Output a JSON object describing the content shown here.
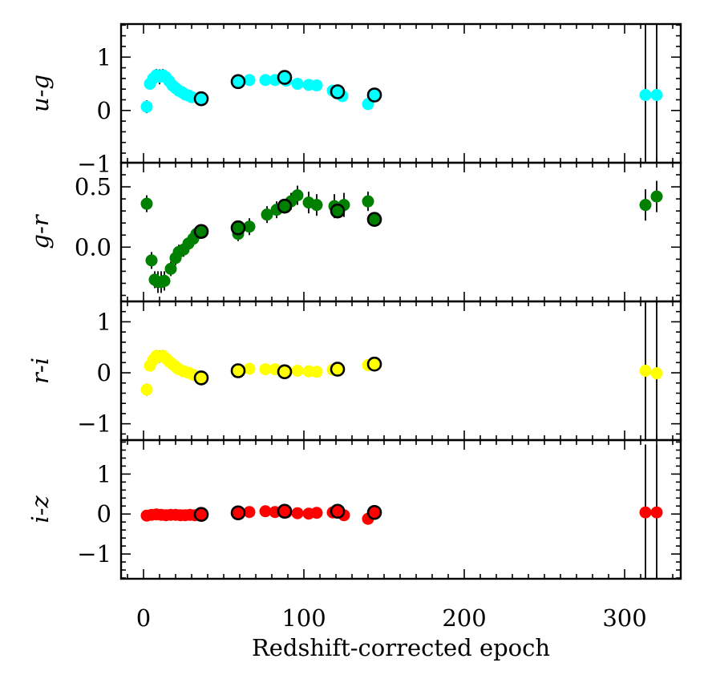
{
  "chart_data": {
    "type": "scatter",
    "xlabel": "Redshift-corrected epoch",
    "xlim": [
      -14,
      335
    ],
    "xticks": [
      0,
      100,
      200,
      300
    ],
    "xtick_labels": [
      "0",
      "100",
      "200",
      "300"
    ],
    "panels": [
      {
        "id": "u-g",
        "ylabel": "u-g",
        "color": "#00ffff",
        "ylim": [
          -0.98,
          1.62
        ],
        "yticks": [
          -1,
          0,
          1
        ],
        "ytick_labels": [
          "−1",
          "0",
          "1"
        ],
        "points": [
          {
            "x": 2,
            "y": 0.07,
            "err": 0.12
          },
          {
            "x": 4,
            "y": 0.5,
            "err": 0.1
          },
          {
            "x": 6,
            "y": 0.6,
            "err": 0.12
          },
          {
            "x": 8,
            "y": 0.66,
            "err": 0.12
          },
          {
            "x": 10,
            "y": 0.63,
            "err": 0.14
          },
          {
            "x": 12,
            "y": 0.66,
            "err": 0.12
          },
          {
            "x": 14,
            "y": 0.62,
            "err": 0.1
          },
          {
            "x": 16,
            "y": 0.55,
            "err": 0.08
          },
          {
            "x": 18,
            "y": 0.47,
            "err": 0.06
          },
          {
            "x": 20,
            "y": 0.42,
            "err": 0.06
          },
          {
            "x": 22,
            "y": 0.37,
            "err": 0.05
          },
          {
            "x": 24,
            "y": 0.34,
            "err": 0.05
          },
          {
            "x": 26,
            "y": 0.3,
            "err": 0.05
          },
          {
            "x": 28,
            "y": 0.28,
            "err": 0.05
          },
          {
            "x": 30,
            "y": 0.25,
            "err": 0.04
          },
          {
            "x": 59,
            "y": 0.55,
            "err": 0.05
          },
          {
            "x": 66,
            "y": 0.57,
            "err": 0.05
          },
          {
            "x": 76,
            "y": 0.57,
            "err": 0.05
          },
          {
            "x": 82,
            "y": 0.57,
            "err": 0.05
          },
          {
            "x": 89,
            "y": 0.56,
            "err": 0.05
          },
          {
            "x": 96,
            "y": 0.5,
            "err": 0.05
          },
          {
            "x": 103,
            "y": 0.48,
            "err": 0.05
          },
          {
            "x": 108,
            "y": 0.47,
            "err": 0.05
          },
          {
            "x": 118,
            "y": 0.37,
            "err": 0.06
          },
          {
            "x": 124,
            "y": 0.27,
            "err": 0.06
          },
          {
            "x": 140,
            "y": 0.12,
            "err": 0.08
          },
          {
            "x": 313,
            "y": 0.29,
            "err": 1.4
          },
          {
            "x": 320,
            "y": 0.29,
            "err": 1.4
          }
        ],
        "highlighted": [
          {
            "x": 36,
            "y": 0.22
          },
          {
            "x": 59,
            "y": 0.54
          },
          {
            "x": 88,
            "y": 0.62
          },
          {
            "x": 121,
            "y": 0.35
          },
          {
            "x": 144,
            "y": 0.29
          }
        ]
      },
      {
        "id": "g-r",
        "ylabel": "g-r",
        "color": "#008000",
        "ylim": [
          -0.45,
          0.7
        ],
        "yticks": [
          0.0,
          0.5
        ],
        "ytick_labels": [
          "0.0",
          "0.5"
        ],
        "points": [
          {
            "x": 2,
            "y": 0.36,
            "err": 0.07
          },
          {
            "x": 5,
            "y": -0.11,
            "err": 0.07
          },
          {
            "x": 7,
            "y": -0.27,
            "err": 0.07
          },
          {
            "x": 9,
            "y": -0.29,
            "err": 0.09
          },
          {
            "x": 11,
            "y": -0.29,
            "err": 0.09
          },
          {
            "x": 13,
            "y": -0.28,
            "err": 0.08
          },
          {
            "x": 17,
            "y": -0.18,
            "err": 0.06
          },
          {
            "x": 20,
            "y": -0.09,
            "err": 0.06
          },
          {
            "x": 22,
            "y": -0.04,
            "err": 0.06
          },
          {
            "x": 25,
            "y": -0.02,
            "err": 0.06
          },
          {
            "x": 28,
            "y": 0.03,
            "err": 0.06
          },
          {
            "x": 31,
            "y": 0.07,
            "err": 0.06
          },
          {
            "x": 33,
            "y": 0.11,
            "err": 0.06
          },
          {
            "x": 59,
            "y": 0.11,
            "err": 0.06
          },
          {
            "x": 66,
            "y": 0.17,
            "err": 0.07
          },
          {
            "x": 77,
            "y": 0.27,
            "err": 0.07
          },
          {
            "x": 83,
            "y": 0.31,
            "err": 0.07
          },
          {
            "x": 92,
            "y": 0.38,
            "err": 0.07
          },
          {
            "x": 96,
            "y": 0.43,
            "err": 0.08
          },
          {
            "x": 103,
            "y": 0.37,
            "err": 0.09
          },
          {
            "x": 108,
            "y": 0.35,
            "err": 0.09
          },
          {
            "x": 119,
            "y": 0.34,
            "err": 0.1
          },
          {
            "x": 125,
            "y": 0.35,
            "err": 0.1
          },
          {
            "x": 140,
            "y": 0.38,
            "err": 0.08
          },
          {
            "x": 313,
            "y": 0.35,
            "err": 0.13
          },
          {
            "x": 320,
            "y": 0.42,
            "err": 0.13
          }
        ],
        "highlighted": [
          {
            "x": 36,
            "y": 0.13
          },
          {
            "x": 59,
            "y": 0.16
          },
          {
            "x": 88,
            "y": 0.34
          },
          {
            "x": 121,
            "y": 0.3
          },
          {
            "x": 144,
            "y": 0.23
          }
        ]
      },
      {
        "id": "r-i",
        "ylabel": "r-i",
        "color": "#ffff00",
        "ylim": [
          -1.32,
          1.4
        ],
        "yticks": [
          -1,
          0,
          1
        ],
        "ytick_labels": [
          "−1",
          "0",
          "1"
        ],
        "points": [
          {
            "x": 2,
            "y": -0.33,
            "err": 0.12
          },
          {
            "x": 4,
            "y": 0.14,
            "err": 0.1
          },
          {
            "x": 6,
            "y": 0.25,
            "err": 0.12
          },
          {
            "x": 8,
            "y": 0.33,
            "err": 0.12
          },
          {
            "x": 10,
            "y": 0.32,
            "err": 0.12
          },
          {
            "x": 12,
            "y": 0.33,
            "err": 0.12
          },
          {
            "x": 14,
            "y": 0.28,
            "err": 0.1
          },
          {
            "x": 16,
            "y": 0.22,
            "err": 0.08
          },
          {
            "x": 18,
            "y": 0.17,
            "err": 0.07
          },
          {
            "x": 20,
            "y": 0.12,
            "err": 0.07
          },
          {
            "x": 22,
            "y": 0.07,
            "err": 0.06
          },
          {
            "x": 25,
            "y": 0.03,
            "err": 0.06
          },
          {
            "x": 28,
            "y": 0.0,
            "err": 0.06
          },
          {
            "x": 31,
            "y": -0.04,
            "err": 0.05
          },
          {
            "x": 59,
            "y": 0.05,
            "err": 0.05
          },
          {
            "x": 66,
            "y": 0.08,
            "err": 0.05
          },
          {
            "x": 76,
            "y": 0.07,
            "err": 0.05
          },
          {
            "x": 82,
            "y": 0.07,
            "err": 0.05
          },
          {
            "x": 89,
            "y": 0.04,
            "err": 0.05
          },
          {
            "x": 96,
            "y": 0.04,
            "err": 0.05
          },
          {
            "x": 103,
            "y": 0.03,
            "err": 0.05
          },
          {
            "x": 108,
            "y": 0.02,
            "err": 0.05
          },
          {
            "x": 118,
            "y": 0.06,
            "err": 0.06
          },
          {
            "x": 140,
            "y": 0.15,
            "err": 0.07
          },
          {
            "x": 313,
            "y": 0.04,
            "err": 1.5
          },
          {
            "x": 320,
            "y": -0.01,
            "err": 1.5
          }
        ],
        "highlighted": [
          {
            "x": 36,
            "y": -0.1
          },
          {
            "x": 59,
            "y": 0.04
          },
          {
            "x": 88,
            "y": 0.02
          },
          {
            "x": 121,
            "y": 0.07
          },
          {
            "x": 144,
            "y": 0.17
          }
        ]
      },
      {
        "id": "i-z",
        "ylabel": "i-z",
        "color": "#ff0000",
        "ylim": [
          -1.62,
          1.85
        ],
        "yticks": [
          -1,
          0,
          1
        ],
        "ytick_labels": [
          "−1",
          "0",
          "1"
        ],
        "points": [
          {
            "x": 2,
            "y": -0.04,
            "err": 0.05
          },
          {
            "x": 5,
            "y": -0.02,
            "err": 0.05
          },
          {
            "x": 8,
            "y": -0.01,
            "err": 0.05
          },
          {
            "x": 11,
            "y": -0.02,
            "err": 0.05
          },
          {
            "x": 14,
            "y": -0.03,
            "err": 0.05
          },
          {
            "x": 17,
            "y": -0.02,
            "err": 0.05
          },
          {
            "x": 20,
            "y": -0.02,
            "err": 0.05
          },
          {
            "x": 23,
            "y": -0.03,
            "err": 0.05
          },
          {
            "x": 26,
            "y": -0.03,
            "err": 0.05
          },
          {
            "x": 29,
            "y": -0.02,
            "err": 0.05
          },
          {
            "x": 32,
            "y": -0.03,
            "err": 0.05
          },
          {
            "x": 59,
            "y": 0.03,
            "err": 0.05
          },
          {
            "x": 66,
            "y": 0.05,
            "err": 0.05
          },
          {
            "x": 76,
            "y": 0.07,
            "err": 0.05
          },
          {
            "x": 82,
            "y": 0.05,
            "err": 0.05
          },
          {
            "x": 89,
            "y": 0.04,
            "err": 0.05
          },
          {
            "x": 96,
            "y": 0.02,
            "err": 0.05
          },
          {
            "x": 103,
            "y": 0.01,
            "err": 0.05
          },
          {
            "x": 108,
            "y": 0.03,
            "err": 0.05
          },
          {
            "x": 118,
            "y": 0.04,
            "err": 0.05
          },
          {
            "x": 125,
            "y": -0.03,
            "err": 0.05
          },
          {
            "x": 140,
            "y": -0.12,
            "err": 0.06
          },
          {
            "x": 313,
            "y": 0.04,
            "err": 1.7
          },
          {
            "x": 320,
            "y": 0.04,
            "err": 1.7
          }
        ],
        "highlighted": [
          {
            "x": 36,
            "y": -0.01
          },
          {
            "x": 59,
            "y": 0.03
          },
          {
            "x": 88,
            "y": 0.07
          },
          {
            "x": 121,
            "y": 0.07
          },
          {
            "x": 144,
            "y": 0.04
          }
        ]
      }
    ]
  }
}
